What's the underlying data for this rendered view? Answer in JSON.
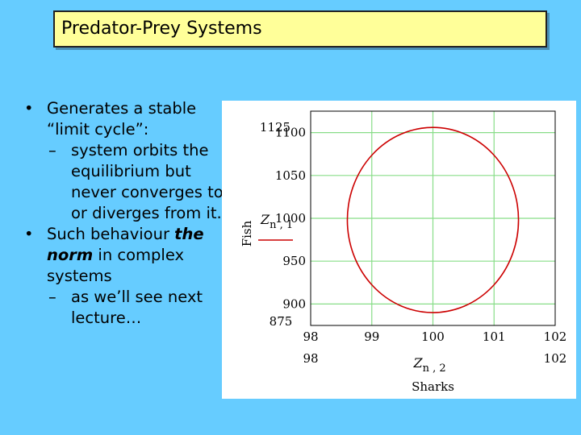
{
  "slide": {
    "title": "Predator-Prey Systems",
    "bullets": [
      {
        "marker": "•",
        "text": "Generates a stable “limit cycle”:"
      },
      {
        "marker": "–",
        "text": "system orbits the equilibrium but never converges to or diverges from it."
      },
      {
        "marker": "•",
        "text_before": "Such behaviour ",
        "emphasis": "the norm",
        "text_after": " in complex systems"
      },
      {
        "marker": "–",
        "text": "as we’ll see next lecture…"
      }
    ]
  },
  "colors": {
    "background": "#66ccff",
    "title_fill": "#ffff99",
    "curve": "#cc0000",
    "grid": "#88dd88"
  },
  "chart_data": {
    "type": "line",
    "xlabel": "Sharks",
    "ylabel": "Fish",
    "x_var": "Z",
    "x_sub": "n , 2",
    "y_var": "Z",
    "y_sub": "n , 1",
    "xlim": [
      98,
      102
    ],
    "ylim": [
      875,
      1125
    ],
    "x_range_labels": [
      "98",
      "102"
    ],
    "y_range_labels": [
      "1125",
      "875"
    ],
    "xticks": [
      98,
      99,
      100,
      101,
      102
    ],
    "xtick_labels": [
      "98",
      "99",
      "100",
      "101",
      "102"
    ],
    "yticks": [
      900,
      950,
      1000,
      1050,
      1100
    ],
    "ytick_labels": [
      "900",
      "950",
      "1000",
      "1050",
      "1100"
    ],
    "grid": true,
    "series": [
      {
        "type": "ellipse",
        "center": [
          100,
          998
        ],
        "radius_x": 1.4,
        "radius_y": 108
      }
    ]
  }
}
